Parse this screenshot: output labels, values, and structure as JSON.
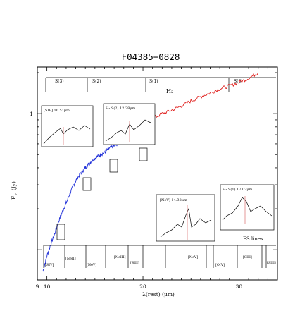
{
  "chart_data": {
    "type": "line",
    "title": "F04385−0828",
    "xlabel": "λ(rest)  (μm)",
    "ylabel": "Fν (Jy)",
    "ylabel_parts": {
      "main": "F",
      "sub": "ν",
      "unit": "(Jy)"
    },
    "xlim": [
      9,
      34
    ],
    "ylim": [
      0.06,
      2.2
    ],
    "yscale": "log",
    "xtick_labels": [
      "9",
      "10",
      "20",
      "30"
    ],
    "xtick_values": [
      9,
      10,
      20,
      30
    ],
    "ytick_labels": [
      "1"
    ],
    "ytick_values": [
      1
    ],
    "series": [
      {
        "color": "#1f2fd8",
        "x": [
          9.6,
          10.0,
          10.4,
          10.8,
          11.2,
          11.6,
          12.0,
          12.4,
          12.8,
          13.2,
          13.6,
          14.0,
          14.4,
          14.8,
          15.2,
          15.6,
          16.0,
          16.4,
          16.8,
          17.2,
          17.6,
          18.0,
          18.4,
          18.8,
          19.2
        ],
        "y": [
          0.07,
          0.09,
          0.11,
          0.13,
          0.16,
          0.19,
          0.22,
          0.26,
          0.3,
          0.34,
          0.37,
          0.4,
          0.43,
          0.46,
          0.48,
          0.5,
          0.52,
          0.55,
          0.57,
          0.59,
          0.61,
          0.64,
          0.67,
          0.7,
          0.74
        ]
      },
      {
        "color": "#e0201e",
        "x": [
          19.2,
          20.0,
          21.0,
          22.0,
          23.0,
          24.0,
          25.0,
          26.0,
          27.0,
          28.0,
          29.0,
          30.0,
          31.0,
          32.0
        ],
        "y": [
          0.74,
          0.82,
          0.92,
          1.0,
          1.06,
          1.14,
          1.24,
          1.33,
          1.42,
          1.52,
          1.6,
          1.7,
          1.82,
          2.0
        ]
      }
    ],
    "h2_lines": {
      "labels": [
        "S(3)",
        "S(2)",
        "S(1)",
        "S(0)"
      ],
      "wavelengths": [
        9.66,
        12.28,
        17.03,
        28.22
      ],
      "group_label": "H₂"
    },
    "fs_lines": {
      "labels": [
        "[SIV]",
        "[NeII]",
        "[NeV]",
        "[NeIII]",
        "[SIII]",
        "[NeV]",
        "[OIV]",
        "[SIII]",
        "[SIII]"
      ],
      "wavelengths": [
        10.51,
        12.81,
        14.32,
        15.56,
        18.71,
        24.32,
        25.89,
        33.48,
        33.48
      ],
      "group_label": "FS lines"
    },
    "insets": [
      {
        "label": "[SIV] 10.51μm"
      },
      {
        "label": "H₂ S(2) 12.28μm"
      },
      {
        "label": "[NeV] 14.32μm"
      },
      {
        "label": "H₂ S(1) 17.03μm"
      }
    ],
    "legend": "none",
    "grid": false
  }
}
